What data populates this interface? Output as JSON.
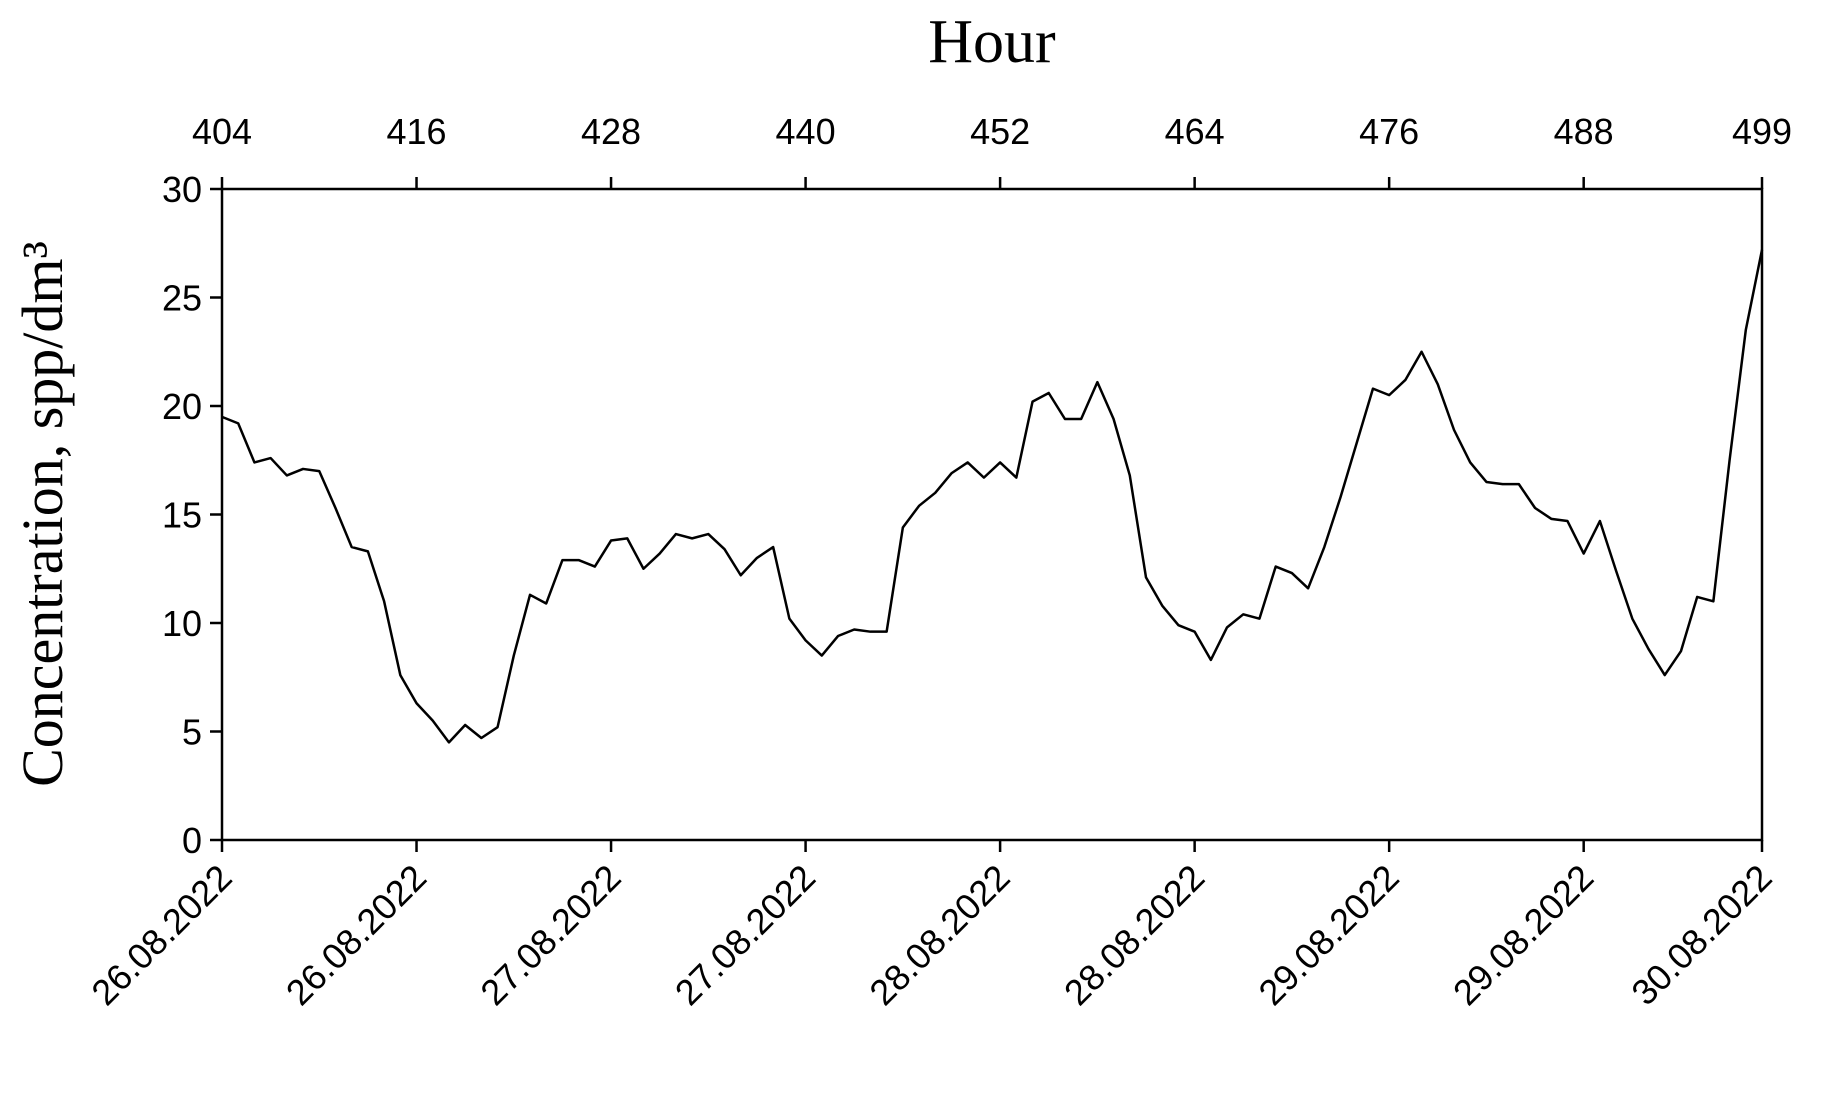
{
  "chart_data": {
    "type": "line",
    "title": "Hour",
    "y_label": "Concentration, spp/dm³",
    "x": [
      404,
      405,
      406,
      407,
      408,
      409,
      410,
      411,
      412,
      413,
      414,
      415,
      416,
      417,
      418,
      419,
      420,
      421,
      422,
      423,
      424,
      425,
      426,
      427,
      428,
      429,
      430,
      431,
      432,
      433,
      434,
      435,
      436,
      437,
      438,
      439,
      440,
      441,
      442,
      443,
      444,
      445,
      446,
      447,
      448,
      449,
      450,
      451,
      452,
      453,
      454,
      455,
      456,
      457,
      458,
      459,
      460,
      461,
      462,
      463,
      464,
      465,
      466,
      467,
      468,
      469,
      470,
      471,
      472,
      473,
      474,
      475,
      476,
      477,
      478,
      479,
      480,
      481,
      482,
      483,
      484,
      485,
      486,
      487,
      488,
      489,
      490,
      491,
      492,
      493,
      494,
      495,
      496,
      497,
      498,
      499
    ],
    "series": [
      {
        "name": "Concentration",
        "color": "#000000",
        "values": [
          19.5,
          19.2,
          17.4,
          17.6,
          16.8,
          17.1,
          17.0,
          15.3,
          13.5,
          13.3,
          11.0,
          7.6,
          6.3,
          5.5,
          4.5,
          5.3,
          4.7,
          5.2,
          8.5,
          11.3,
          10.9,
          12.9,
          12.9,
          12.6,
          13.8,
          13.9,
          12.5,
          13.2,
          14.1,
          13.9,
          14.1,
          13.4,
          12.2,
          13.0,
          13.5,
          10.2,
          9.2,
          8.5,
          9.4,
          9.7,
          9.6,
          9.6,
          14.4,
          15.4,
          16.0,
          16.9,
          17.4,
          16.7,
          17.4,
          16.7,
          20.2,
          20.6,
          19.4,
          19.4,
          21.1,
          19.4,
          16.8,
          12.1,
          10.8,
          9.9,
          9.6,
          8.3,
          9.8,
          10.4,
          10.2,
          12.6,
          12.3,
          11.6,
          13.5,
          15.8,
          18.3,
          20.8,
          20.5,
          21.2,
          22.5,
          21.0,
          18.9,
          17.4,
          16.5,
          16.4,
          16.4,
          15.3,
          14.8,
          14.7,
          13.2,
          14.7,
          12.4,
          10.2,
          8.8,
          7.6,
          8.7,
          11.2,
          11.0,
          17.5,
          23.5,
          27.2
        ]
      }
    ],
    "xlim": [
      404,
      499
    ],
    "xticks": [
      404,
      416,
      428,
      440,
      452,
      464,
      476,
      488,
      499
    ],
    "date_ticks": [
      {
        "value": 404,
        "label": "26.08.2022"
      },
      {
        "value": 416,
        "label": "26.08.2022"
      },
      {
        "value": 428,
        "label": "27.08.2022"
      },
      {
        "value": 440,
        "label": "27.08.2022"
      },
      {
        "value": 452,
        "label": "28.08.2022"
      },
      {
        "value": 464,
        "label": "28.08.2022"
      },
      {
        "value": 476,
        "label": "29.08.2022"
      },
      {
        "value": 488,
        "label": "29.08.2022"
      },
      {
        "value": 499,
        "label": "30.08.2022"
      }
    ],
    "ylim": [
      0,
      30
    ],
    "yticks": [
      0,
      5,
      10,
      15,
      20,
      25,
      30
    ],
    "grid": false
  }
}
